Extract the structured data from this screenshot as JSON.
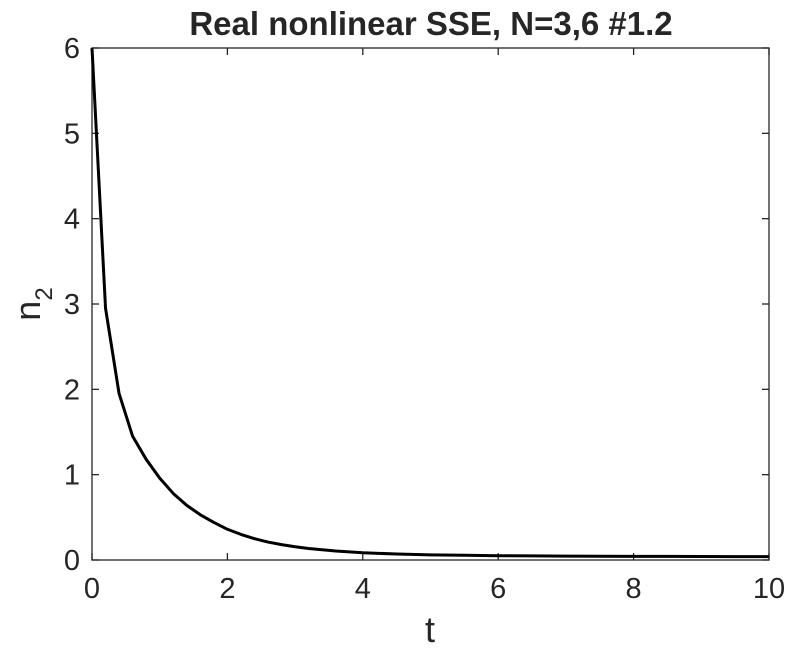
{
  "chart_data": {
    "type": "line",
    "title": "Real nonlinear SSE, N=3,6 #1.2",
    "xlabel": "t",
    "ylabel": "n",
    "ylabel_subscript": "2",
    "xlim": [
      0,
      10
    ],
    "ylim": [
      0,
      6
    ],
    "xticks": [
      0,
      2,
      4,
      6,
      8,
      10
    ],
    "yticks": [
      0,
      1,
      2,
      3,
      4,
      5,
      6
    ],
    "grid": false,
    "line_color": "#000000",
    "series": [
      {
        "x": [
          0,
          0.2,
          0.4,
          0.6,
          0.8,
          1.0,
          1.2,
          1.4,
          1.6,
          1.8,
          2.0,
          2.2,
          2.4,
          2.6,
          2.8,
          3.0,
          3.2,
          3.4,
          3.6,
          3.8,
          4.0,
          4.5,
          5.0,
          5.5,
          6.0,
          6.5,
          7.0,
          7.5,
          8.0,
          8.5,
          9.0,
          9.5,
          10.0
        ],
        "y": [
          6.0,
          2.95,
          1.95,
          1.45,
          1.18,
          0.96,
          0.78,
          0.64,
          0.53,
          0.44,
          0.36,
          0.3,
          0.25,
          0.21,
          0.18,
          0.155,
          0.135,
          0.12,
          0.105,
          0.095,
          0.085,
          0.07,
          0.06,
          0.055,
          0.05,
          0.048,
          0.046,
          0.044,
          0.043,
          0.042,
          0.041,
          0.04,
          0.04
        ]
      }
    ]
  }
}
